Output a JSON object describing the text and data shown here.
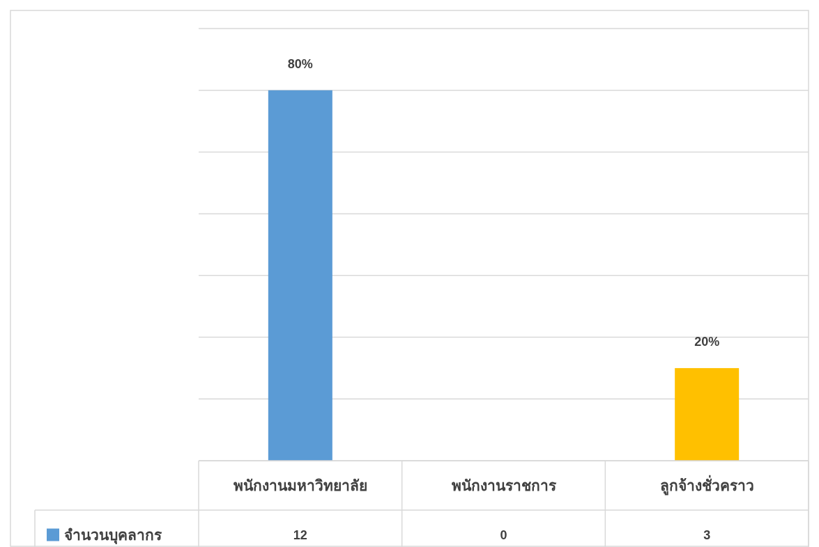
{
  "chart_data": {
    "type": "bar",
    "categories": [
      "พนักงานมหาวิทยาลัย",
      "พนักงานราชการ",
      "ลูกจ้างชั่วคราว"
    ],
    "series": [
      {
        "name": "จำนวนบุคลากร",
        "color": "#5b9bd5",
        "colors": [
          "#5b9bd5",
          "#5b9bd5",
          "#ffc000"
        ],
        "values": [
          12,
          0,
          3
        ],
        "value_labels": [
          "12",
          "0",
          "3"
        ]
      }
    ],
    "annotations": [
      {
        "text": "80%",
        "x": "พนักงานมหาวิทยาลัย",
        "y": 12
      },
      {
        "text": "20%",
        "x": "ลูกจ้างชั่วคราว",
        "y": 3
      }
    ],
    "grid": "y",
    "legend": "bottom left",
    "tick_labels": "x"
  }
}
